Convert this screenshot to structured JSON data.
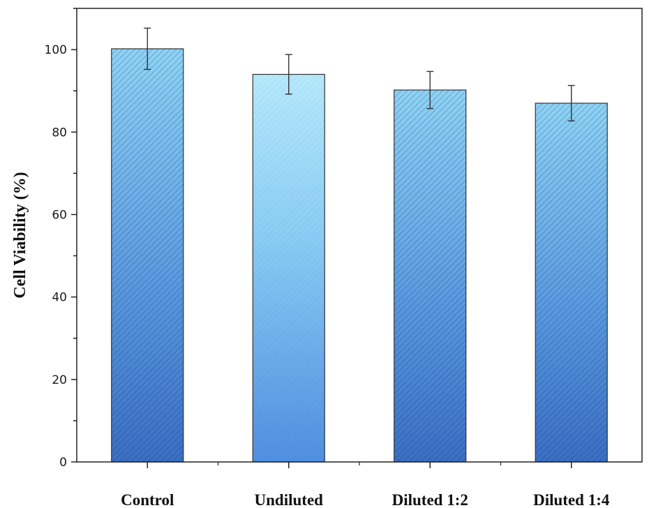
{
  "chart_data": {
    "type": "bar",
    "title": "",
    "xlabel": "",
    "ylabel": "Cell Viability (%)",
    "categories": [
      "Control",
      "Undiluted",
      "Diluted 1:2",
      "Diluted 1:4"
    ],
    "values": [
      100.2,
      94.0,
      90.2,
      87.0
    ],
    "errors": [
      5.0,
      4.8,
      4.5,
      4.3
    ],
    "ylim": [
      0,
      110
    ],
    "yticks": [
      0,
      20,
      40,
      60,
      80,
      100
    ],
    "grid": false,
    "legend": "none",
    "bar_patterns": [
      "diagonal-hatch",
      "plain-gradient",
      "diagonal-hatch",
      "diagonal-hatch"
    ],
    "colors": {
      "bar_dark": "#3a6fc4",
      "bar_light": "#b6e9fb",
      "bar_stroke": "#333333",
      "axis": "#222222"
    }
  }
}
